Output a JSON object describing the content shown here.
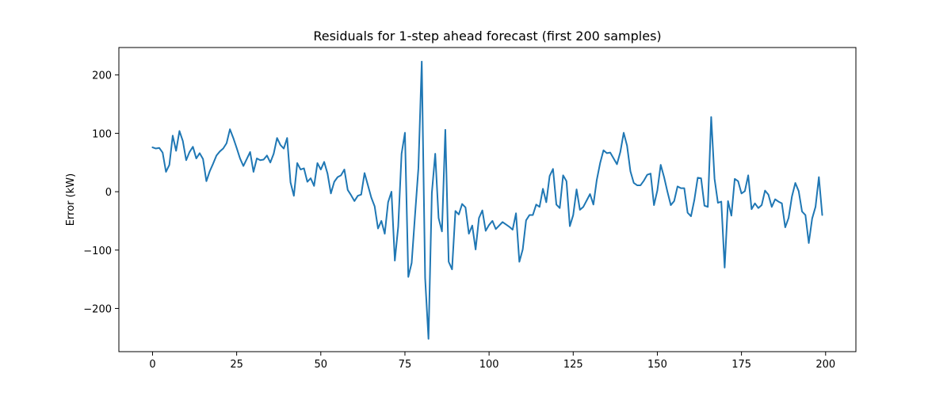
{
  "chart_data": {
    "type": "line",
    "title": "Residuals for 1-step ahead forecast (first 200 samples)",
    "xlabel": "",
    "ylabel": "Error (kW)",
    "xlim": [
      -10,
      209
    ],
    "ylim": [
      -274,
      247
    ],
    "xticks": [
      0,
      25,
      50,
      75,
      100,
      125,
      150,
      175,
      200
    ],
    "yticks": [
      -200,
      -100,
      0,
      100,
      200
    ],
    "ytick_labels": [
      "−200",
      "−100",
      "0",
      "100",
      "200"
    ],
    "grid": false,
    "color": "#1f77b4",
    "series": [
      {
        "values": [
          76,
          74,
          75,
          67,
          34,
          46,
          96,
          70,
          104,
          87,
          54,
          68,
          77,
          57,
          66,
          56,
          18,
          35,
          48,
          62,
          69,
          74,
          83,
          107,
          92,
          75,
          57,
          44,
          56,
          68,
          34,
          57,
          54,
          55,
          62,
          50,
          65,
          92,
          80,
          74,
          92,
          16,
          -7,
          49,
          38,
          40,
          17,
          23,
          10,
          49,
          38,
          51,
          31,
          -3,
          17,
          25,
          28,
          38,
          3,
          -6,
          -16,
          -7,
          -5,
          32,
          11,
          -10,
          -25,
          -63,
          -50,
          -72,
          -18,
          0,
          -118,
          -60,
          65,
          101,
          -146,
          -122,
          -40,
          40,
          223,
          -148,
          -252,
          -2,
          65,
          -45,
          -68,
          106,
          -120,
          -133,
          -33,
          -39,
          -21,
          -27,
          -72,
          -58,
          -99,
          -45,
          -32,
          -67,
          -57,
          -50,
          -64,
          -58,
          -52,
          -56,
          -60,
          -65,
          -37,
          -120,
          -99,
          -49,
          -40,
          -40,
          -22,
          -26,
          5,
          -18,
          27,
          39,
          -22,
          -28,
          28,
          18,
          -59,
          -40,
          4,
          -31,
          -26,
          -15,
          -4,
          -22,
          20,
          49,
          71,
          66,
          67,
          57,
          47,
          68,
          101,
          79,
          35,
          15,
          11,
          11,
          19,
          29,
          31,
          -23,
          2,
          46,
          25,
          0,
          -23,
          -16,
          9,
          6,
          6,
          -36,
          -42,
          -14,
          24,
          23,
          -24,
          -26,
          128,
          22,
          -19,
          -17,
          -130,
          -16,
          -41,
          22,
          18,
          -3,
          1,
          28,
          -30,
          -20,
          -28,
          -23,
          2,
          -5,
          -26,
          -13,
          -17,
          -20,
          -61,
          -45,
          -8,
          15,
          1,
          -34,
          -40,
          -88,
          -46,
          -26,
          25,
          -40
        ]
      }
    ]
  }
}
